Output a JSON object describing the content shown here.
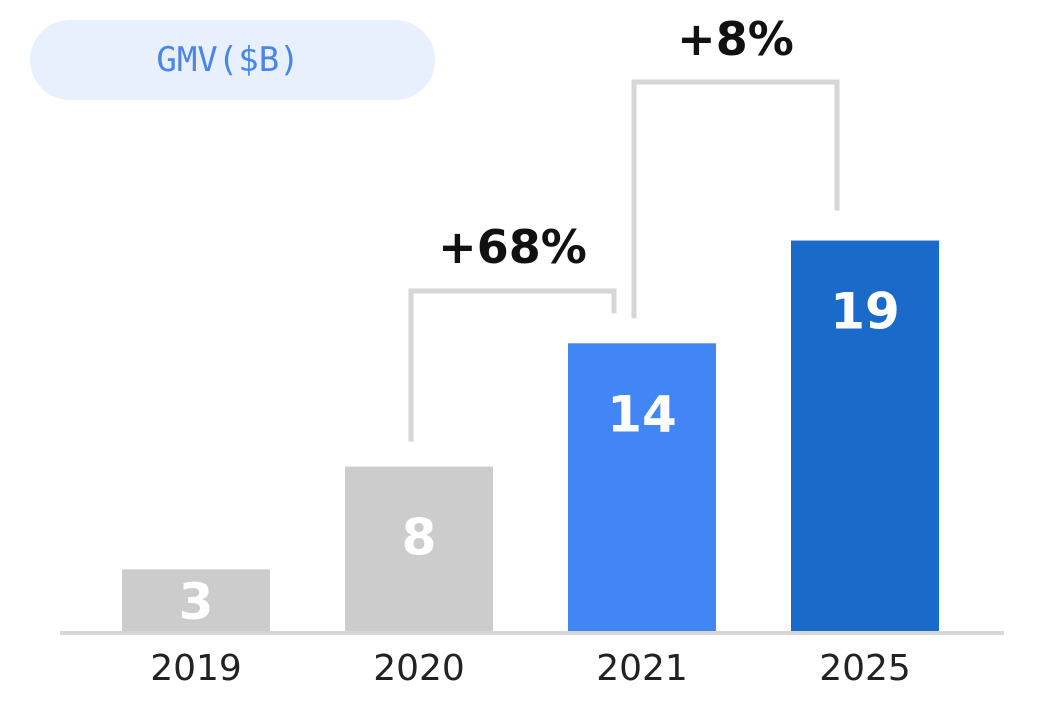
{
  "chart_data": {
    "type": "bar",
    "title": "GMV($B)",
    "categories": [
      "2019",
      "2020",
      "2021",
      "2025"
    ],
    "values": [
      3,
      8,
      14,
      19
    ],
    "xlabel": "",
    "ylabel": "",
    "ylim": [
      0,
      20
    ],
    "grid": false,
    "legend": "none",
    "annotations": [
      {
        "from": "2020",
        "to": "2021",
        "label": "+68%"
      },
      {
        "from": "2021",
        "to": "2025",
        "label": "+8%"
      }
    ]
  },
  "colors": {
    "bars": [
      "#cccccc",
      "#cccccc",
      "#4285f4",
      "#1a6ac9"
    ],
    "bar_label": "#ffffff",
    "tick_label": "#222222",
    "growth_label": "#111111",
    "bracket": "#d6d6d6",
    "axis": "#d6d6d6",
    "pill_bg": "#e8f0fe",
    "pill_text": "#4a86e8"
  }
}
